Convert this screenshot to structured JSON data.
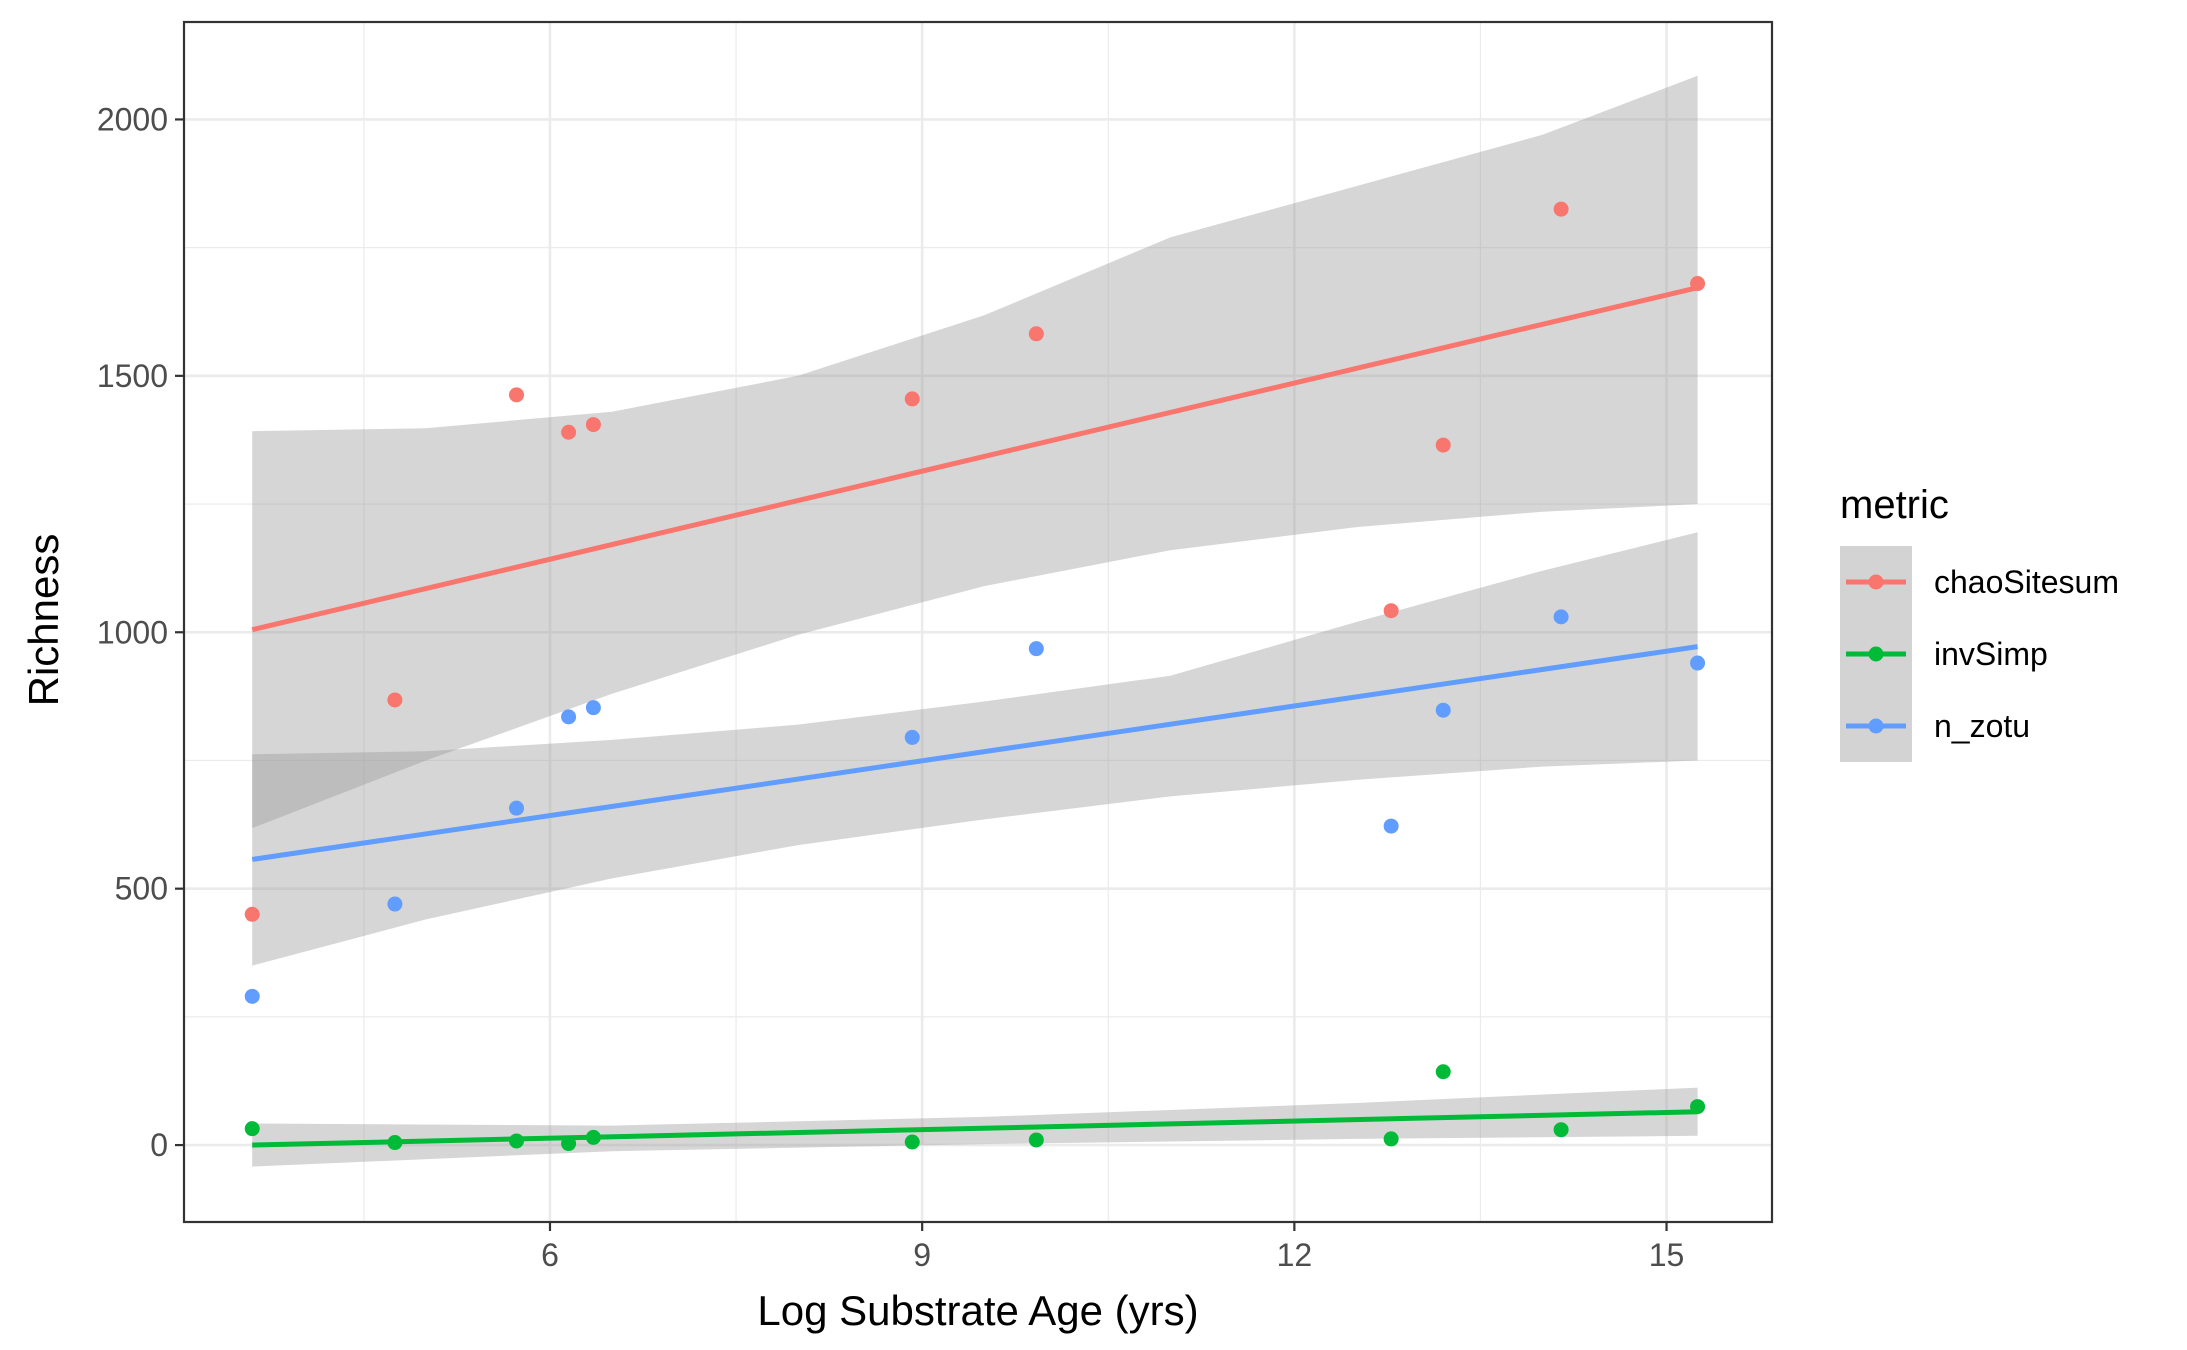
{
  "chart_data": {
    "type": "scatter",
    "xlabel": "Log Substrate Age (yrs)",
    "ylabel": "Richness",
    "xlim": [
      3.05,
      15.85
    ],
    "ylim": [
      -150,
      2190
    ],
    "x_ticks": [
      6,
      9,
      12,
      15
    ],
    "x_tick_labels": [
      "6",
      "9",
      "12",
      "15"
    ],
    "x_minor_ticks": [
      4.5,
      7.5,
      10.5,
      13.5
    ],
    "y_ticks": [
      0,
      500,
      1000,
      1500,
      2000
    ],
    "y_tick_labels": [
      "0",
      "500",
      "1000",
      "1500",
      "2000"
    ],
    "y_minor_ticks": [
      250,
      750,
      1250,
      1750
    ],
    "grid": true,
    "legend": {
      "title": "metric",
      "position": "right"
    },
    "series": [
      {
        "name": "chaoSitesum",
        "color": "#F8766D",
        "points": [
          {
            "x": 3.6,
            "y": 450
          },
          {
            "x": 4.75,
            "y": 868
          },
          {
            "x": 5.73,
            "y": 1463
          },
          {
            "x": 6.15,
            "y": 1390
          },
          {
            "x": 6.35,
            "y": 1405
          },
          {
            "x": 8.92,
            "y": 1455
          },
          {
            "x": 9.92,
            "y": 1582
          },
          {
            "x": 12.78,
            "y": 1042
          },
          {
            "x": 13.2,
            "y": 1365
          },
          {
            "x": 14.15,
            "y": 1825
          },
          {
            "x": 15.25,
            "y": 1680
          }
        ],
        "fit": {
          "x": [
            3.6,
            15.25
          ],
          "y": [
            1005,
            1672
          ]
        },
        "ci_band": {
          "x": [
            3.6,
            5.0,
            6.5,
            8.0,
            9.5,
            11.0,
            12.5,
            14.0,
            15.25
          ],
          "lower": [
            618,
            750,
            880,
            995,
            1090,
            1160,
            1205,
            1235,
            1250
          ],
          "upper": [
            1392,
            1398,
            1430,
            1500,
            1618,
            1770,
            1870,
            1970,
            2085
          ]
        }
      },
      {
        "name": "invSimp",
        "color": "#00BA38",
        "points": [
          {
            "x": 3.6,
            "y": 32
          },
          {
            "x": 4.75,
            "y": 5
          },
          {
            "x": 5.73,
            "y": 8
          },
          {
            "x": 6.15,
            "y": 3
          },
          {
            "x": 6.35,
            "y": 15
          },
          {
            "x": 8.92,
            "y": 6
          },
          {
            "x": 9.92,
            "y": 10
          },
          {
            "x": 12.78,
            "y": 12
          },
          {
            "x": 13.2,
            "y": 143
          },
          {
            "x": 14.15,
            "y": 30
          },
          {
            "x": 15.25,
            "y": 75
          }
        ],
        "fit": {
          "x": [
            3.6,
            15.25
          ],
          "y": [
            0,
            65
          ]
        },
        "ci_band": {
          "x": [
            3.6,
            6.5,
            9.5,
            12.5,
            15.25
          ],
          "lower": [
            -42,
            -12,
            2,
            12,
            18
          ],
          "upper": [
            42,
            38,
            55,
            82,
            112
          ]
        }
      },
      {
        "name": "n_zotu",
        "color": "#619CFF",
        "points": [
          {
            "x": 3.6,
            "y": 290
          },
          {
            "x": 4.75,
            "y": 470
          },
          {
            "x": 5.73,
            "y": 657
          },
          {
            "x": 6.15,
            "y": 835
          },
          {
            "x": 6.35,
            "y": 853
          },
          {
            "x": 8.92,
            "y": 795
          },
          {
            "x": 9.92,
            "y": 968
          },
          {
            "x": 12.78,
            "y": 622
          },
          {
            "x": 13.2,
            "y": 848
          },
          {
            "x": 14.15,
            "y": 1030
          },
          {
            "x": 15.25,
            "y": 940
          }
        ],
        "fit": {
          "x": [
            3.6,
            15.25
          ],
          "y": [
            557,
            972
          ]
        },
        "ci_band": {
          "x": [
            3.6,
            5.0,
            6.5,
            8.0,
            9.5,
            11.0,
            12.5,
            14.0,
            15.25
          ],
          "lower": [
            350,
            440,
            520,
            585,
            635,
            680,
            712,
            738,
            750
          ],
          "upper": [
            762,
            768,
            790,
            820,
            865,
            915,
            1020,
            1120,
            1195
          ]
        }
      }
    ]
  }
}
